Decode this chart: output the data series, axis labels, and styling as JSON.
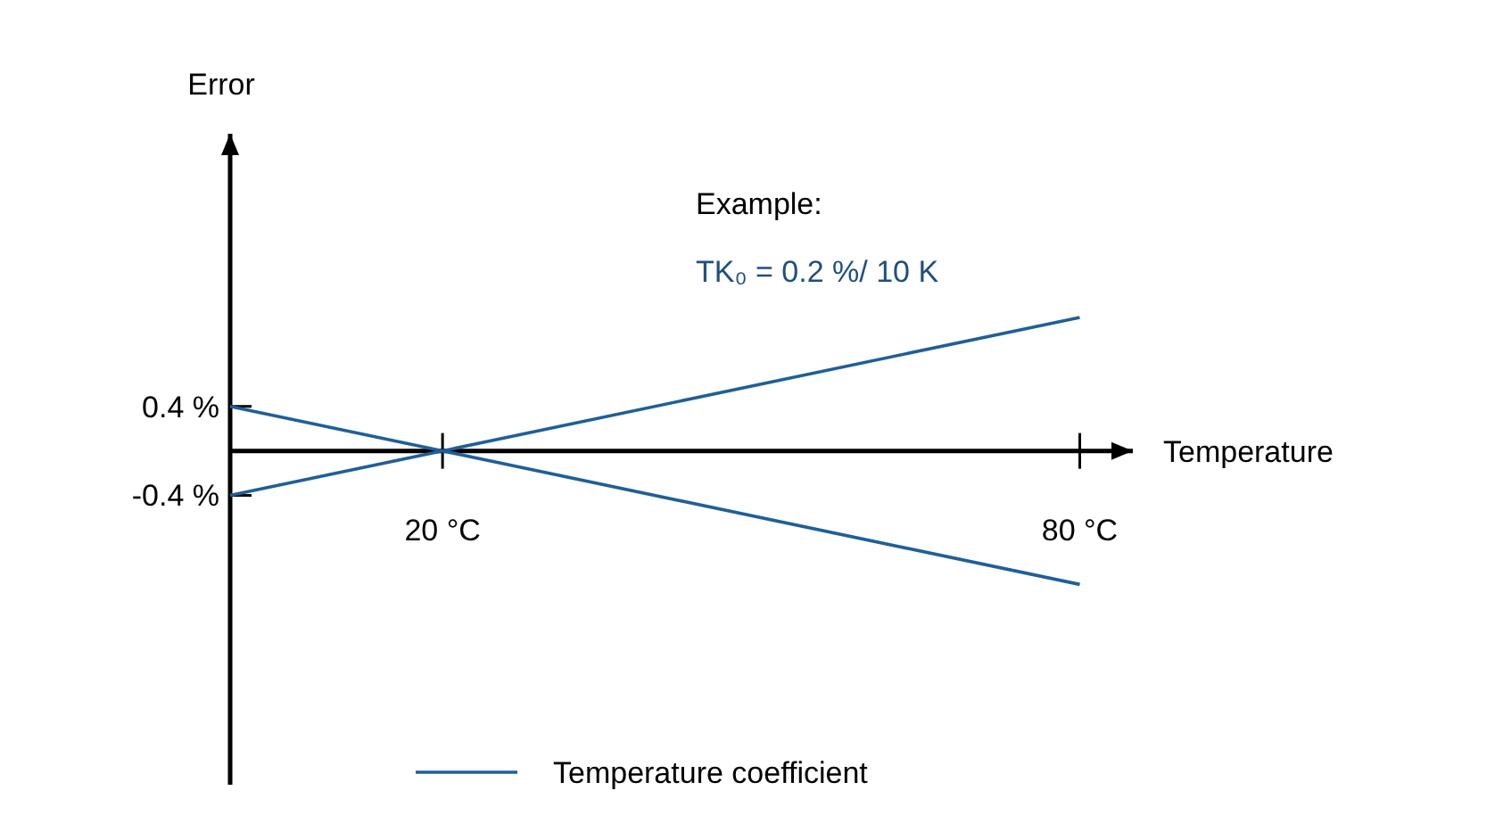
{
  "chart_data": {
    "type": "line",
    "xlabel": "Temperature",
    "ylabel": "Error",
    "annotations": [
      "Example:",
      "TK₀ = 0.2 %/ 10 K"
    ],
    "x": [
      0,
      80
    ],
    "xlim": [
      0,
      85
    ],
    "ylim": [
      -3,
      2.85
    ],
    "xticks": [
      {
        "value": 20,
        "label": "20 °C"
      },
      {
        "value": 80,
        "label": "80 °C"
      }
    ],
    "yticks": [
      {
        "value": 0.4,
        "label": "0.4 %"
      },
      {
        "value": -0.4,
        "label": "-0.4 %"
      }
    ],
    "series": [
      {
        "name": "Temperature coefficient",
        "color": "#1f5f99",
        "values": [
          -0.4,
          1.2
        ]
      },
      {
        "color": "#1f5f99",
        "values": [
          0.4,
          -1.2
        ]
      }
    ],
    "grid": false,
    "legend": "bottom",
    "marker": "none",
    "line_style": "solid"
  }
}
